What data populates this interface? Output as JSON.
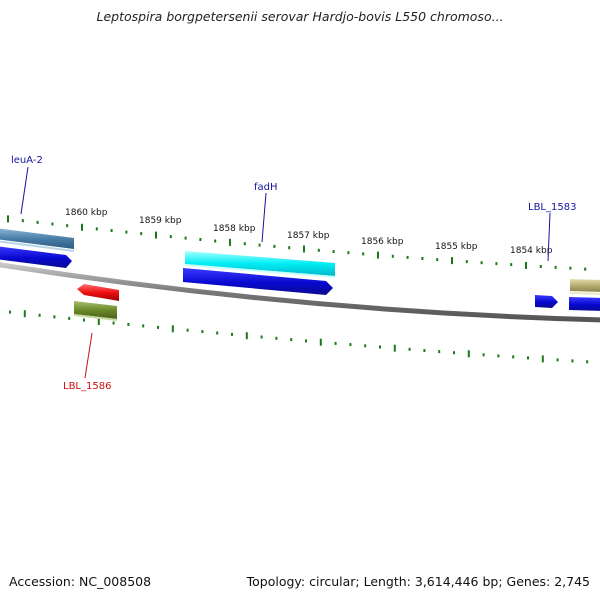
{
  "title": "Leptospira borgpetersenii serovar Hardjo-bovis L550 chromoso...",
  "footer": {
    "accession": "Accession: NC_008508",
    "summary": "Topology: circular; Length: 3,614,446 bp; Genes: 2,745"
  },
  "colors": {
    "backbone": "#808080",
    "tick": "#1a7a1a",
    "blue_label": "#1515a0",
    "red_label": "#cc1010"
  },
  "scale": {
    "unit": "kbp",
    "labels": [
      "1860 kbp",
      "1859 kbp",
      "1858 kbp",
      "1857 kbp",
      "1856 kbp",
      "1855 kbp",
      "1854 kbp"
    ]
  },
  "gene_labels": [
    {
      "id": "leuA",
      "text": "leuA-2",
      "color": "blue"
    },
    {
      "id": "fadH",
      "text": "fadH",
      "color": "blue"
    },
    {
      "id": "LBL1583",
      "text": "LBL_1583",
      "color": "blue"
    },
    {
      "id": "LBL1586",
      "text": "LBL_1586",
      "color": "red"
    }
  ],
  "features": [
    {
      "id": "leuA",
      "name": "leuA-2",
      "track": "outer-2",
      "strand": "+",
      "color": "#4a7ea8"
    },
    {
      "id": "leuA-cds",
      "name": "leuA-2 CDS",
      "track": "outer-1",
      "strand": "+",
      "color": "#1212d8"
    },
    {
      "id": "fadH",
      "name": "fadH",
      "track": "outer-2",
      "strand": "+",
      "color": "#00e0e8"
    },
    {
      "id": "fadH-cds",
      "name": "fadH CDS",
      "track": "outer-1",
      "strand": "+",
      "color": "#1212d8"
    },
    {
      "id": "LBL1586",
      "name": "LBL_1586",
      "track": "inner-1",
      "strand": "-",
      "color": "#e81010"
    },
    {
      "id": "LBL1586-gene",
      "name": "LBL_1586 gene",
      "track": "inner-2",
      "strand": "-",
      "color": "#6b8a2a"
    },
    {
      "id": "LBL1583",
      "name": "LBL_1583",
      "track": "outer-1",
      "strand": "+",
      "color": "#1212d8"
    },
    {
      "id": "LBL1583-gene",
      "name": "LBL_1583 gene",
      "track": "outer-2",
      "strand": "+",
      "color": "#b5ad70"
    },
    {
      "id": "LBL1583-cds",
      "name": "LBL_1583 CDS",
      "track": "outer-1",
      "strand": "+",
      "color": "#1212d8"
    }
  ]
}
